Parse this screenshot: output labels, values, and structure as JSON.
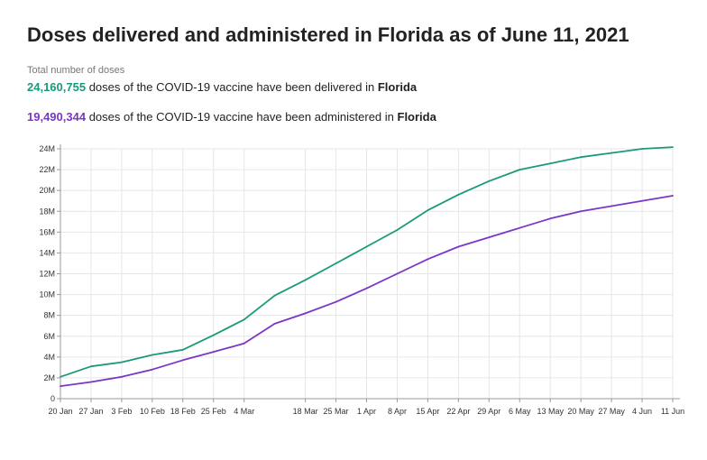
{
  "header": {
    "title": "Doses delivered and administered in Florida as of June 11, 2021",
    "subtitle": "Total number of doses"
  },
  "stats": {
    "delivered": {
      "value": "24,160,755",
      "text": " doses of the COVID-19 vaccine have been delivered in ",
      "place": "Florida"
    },
    "administered": {
      "value": "19,490,344",
      "text": " doses of the COVID-19 vaccine have been administered in ",
      "place": "Florida"
    }
  },
  "colors": {
    "delivered": "#1a9a7a",
    "administered": "#7b36c8"
  },
  "chart_data": {
    "type": "line",
    "title": "",
    "xlabel": "",
    "ylabel": "",
    "ylim": [
      0,
      24000000
    ],
    "grid": true,
    "y_ticks": [
      {
        "value": 0,
        "label": "0"
      },
      {
        "value": 2000000,
        "label": "2M"
      },
      {
        "value": 4000000,
        "label": "4M"
      },
      {
        "value": 6000000,
        "label": "6M"
      },
      {
        "value": 8000000,
        "label": "8M"
      },
      {
        "value": 10000000,
        "label": "10M"
      },
      {
        "value": 12000000,
        "label": "12M"
      },
      {
        "value": 14000000,
        "label": "14M"
      },
      {
        "value": 16000000,
        "label": "16M"
      },
      {
        "value": 18000000,
        "label": "18M"
      },
      {
        "value": 20000000,
        "label": "20M"
      },
      {
        "value": 22000000,
        "label": "22M"
      },
      {
        "value": 24000000,
        "label": "24M"
      }
    ],
    "x_ticks": [
      "20 Jan",
      "27 Jan",
      "3 Feb",
      "10 Feb",
      "18 Feb",
      "25 Feb",
      "4 Mar",
      "18 Mar",
      "25 Mar",
      "1 Apr",
      "8 Apr",
      "15 Apr",
      "22 Apr",
      "29 Apr",
      "6 May",
      "13 May",
      "20 May",
      "27 May",
      "4 Jun",
      "11 Jun"
    ],
    "x": [
      "20 Jan",
      "27 Jan",
      "3 Feb",
      "10 Feb",
      "18 Feb",
      "25 Feb",
      "4 Mar",
      "11 Mar",
      "18 Mar",
      "25 Mar",
      "1 Apr",
      "8 Apr",
      "15 Apr",
      "22 Apr",
      "29 Apr",
      "6 May",
      "13 May",
      "20 May",
      "27 May",
      "4 Jun",
      "11 Jun"
    ],
    "series": [
      {
        "key": "delivered",
        "values": [
          2100000,
          3100000,
          3500000,
          4200000,
          4700000,
          6100000,
          7600000,
          9900000,
          11400000,
          13000000,
          14600000,
          16200000,
          18100000,
          19600000,
          20900000,
          22000000,
          22600000,
          23200000,
          23600000,
          24000000,
          24160755
        ]
      },
      {
        "key": "administered",
        "values": [
          1200000,
          1600000,
          2100000,
          2800000,
          3700000,
          4500000,
          5300000,
          7200000,
          8200000,
          9300000,
          10600000,
          12000000,
          13400000,
          14600000,
          15500000,
          16400000,
          17300000,
          18000000,
          18500000,
          19000000,
          19490344
        ]
      }
    ]
  }
}
